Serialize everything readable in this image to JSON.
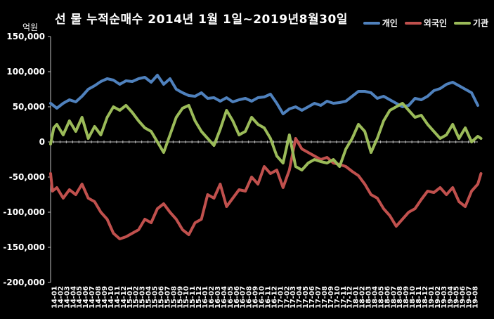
{
  "chart_data": {
    "type": "line",
    "title": "선 물 누적순매수 2014년 1월 1일~2019년8월30일",
    "unit_label": "억원",
    "ylim": [
      -200000,
      150000
    ],
    "y_ticks": [
      "150,000",
      "100,000",
      "50,000",
      "0",
      "-50,000",
      "-100,000",
      "-150,000",
      "-200,000"
    ],
    "x_ticks": [
      "14-01",
      "14-02",
      "14-03",
      "14-04",
      "14-05",
      "14-06",
      "14-07",
      "14-08",
      "14-09",
      "14-10",
      "14-11",
      "14-12",
      "15-01",
      "15-02",
      "15-03",
      "15-04",
      "15-05",
      "15-06",
      "15-07",
      "15-08",
      "15-09",
      "15-10",
      "15-11",
      "15-12",
      "16-01",
      "16-02",
      "16-03",
      "16-04",
      "16-05",
      "16-06",
      "16-07",
      "16-08",
      "16-09",
      "16-10",
      "16-11",
      "16-12",
      "17-01",
      "17-02",
      "17-03",
      "17-04",
      "17-05",
      "17-06",
      "17-07",
      "17-08",
      "17-09",
      "17-10",
      "17-11",
      "17-12",
      "18-01",
      "18-02",
      "18-03",
      "18-04",
      "18-05",
      "18-06",
      "18-07",
      "18-08",
      "18-09",
      "18-10",
      "18-11",
      "18-12",
      "19-01",
      "19-02",
      "19-03",
      "19-04",
      "19-05",
      "19-06",
      "19-07",
      "19-08"
    ],
    "x_range": [
      0,
      68
    ],
    "grid": false,
    "legend_position": "top-right",
    "series": [
      {
        "name": "개인",
        "color": "#4f81bd",
        "points": [
          [
            0,
            55000
          ],
          [
            1,
            48000
          ],
          [
            2,
            55000
          ],
          [
            3,
            60000
          ],
          [
            4,
            57000
          ],
          [
            5,
            65000
          ],
          [
            6,
            75000
          ],
          [
            7,
            80000
          ],
          [
            8,
            86000
          ],
          [
            9,
            90000
          ],
          [
            10,
            88000
          ],
          [
            11,
            82000
          ],
          [
            12,
            87000
          ],
          [
            13,
            86000
          ],
          [
            14,
            90000
          ],
          [
            15,
            92000
          ],
          [
            16,
            85000
          ],
          [
            17,
            95000
          ],
          [
            18,
            82000
          ],
          [
            19,
            90000
          ],
          [
            20,
            75000
          ],
          [
            21,
            70000
          ],
          [
            22,
            66000
          ],
          [
            23,
            65000
          ],
          [
            24,
            70000
          ],
          [
            25,
            62000
          ],
          [
            26,
            63000
          ],
          [
            27,
            58000
          ],
          [
            28,
            63000
          ],
          [
            29,
            57000
          ],
          [
            30,
            60000
          ],
          [
            31,
            62000
          ],
          [
            32,
            58000
          ],
          [
            33,
            63000
          ],
          [
            34,
            64000
          ],
          [
            35,
            68000
          ],
          [
            36,
            55000
          ],
          [
            37,
            40000
          ],
          [
            38,
            47000
          ],
          [
            39,
            50000
          ],
          [
            40,
            45000
          ],
          [
            41,
            50000
          ],
          [
            42,
            55000
          ],
          [
            43,
            52000
          ],
          [
            44,
            58000
          ],
          [
            45,
            55000
          ],
          [
            46,
            56000
          ],
          [
            47,
            58000
          ],
          [
            48,
            65000
          ],
          [
            49,
            72000
          ],
          [
            50,
            72000
          ],
          [
            51,
            70000
          ],
          [
            52,
            62000
          ],
          [
            53,
            65000
          ],
          [
            54,
            60000
          ],
          [
            55,
            55000
          ],
          [
            56,
            50000
          ],
          [
            57,
            52000
          ],
          [
            58,
            62000
          ],
          [
            59,
            60000
          ],
          [
            60,
            65000
          ],
          [
            61,
            73000
          ],
          [
            62,
            76000
          ],
          [
            63,
            82000
          ],
          [
            64,
            85000
          ],
          [
            65,
            80000
          ],
          [
            66,
            75000
          ],
          [
            67,
            70000
          ],
          [
            68,
            52000
          ]
        ]
      },
      {
        "name": "외국인",
        "color": "#c0504d",
        "points": [
          [
            0,
            -45000
          ],
          [
            0.3,
            -70000
          ],
          [
            1,
            -65000
          ],
          [
            2,
            -80000
          ],
          [
            3,
            -68000
          ],
          [
            4,
            -75000
          ],
          [
            5,
            -60000
          ],
          [
            6,
            -80000
          ],
          [
            7,
            -85000
          ],
          [
            8,
            -100000
          ],
          [
            9,
            -110000
          ],
          [
            10,
            -130000
          ],
          [
            11,
            -138000
          ],
          [
            12,
            -135000
          ],
          [
            13,
            -130000
          ],
          [
            14,
            -125000
          ],
          [
            15,
            -110000
          ],
          [
            16,
            -115000
          ],
          [
            17,
            -95000
          ],
          [
            18,
            -88000
          ],
          [
            19,
            -100000
          ],
          [
            20,
            -110000
          ],
          [
            21,
            -125000
          ],
          [
            22,
            -132000
          ],
          [
            23,
            -115000
          ],
          [
            24,
            -110000
          ],
          [
            25,
            -75000
          ],
          [
            26,
            -80000
          ],
          [
            27,
            -60000
          ],
          [
            28,
            -92000
          ],
          [
            29,
            -80000
          ],
          [
            30,
            -68000
          ],
          [
            31,
            -70000
          ],
          [
            32,
            -50000
          ],
          [
            33,
            -60000
          ],
          [
            34,
            -35000
          ],
          [
            35,
            -45000
          ],
          [
            36,
            -40000
          ],
          [
            37,
            -65000
          ],
          [
            38,
            -40000
          ],
          [
            39,
            5000
          ],
          [
            40,
            -10000
          ],
          [
            41,
            -15000
          ],
          [
            42,
            -20000
          ],
          [
            43,
            -25000
          ],
          [
            44,
            -22000
          ],
          [
            45,
            -30000
          ],
          [
            46,
            -32000
          ],
          [
            47,
            -35000
          ],
          [
            48,
            -42000
          ],
          [
            49,
            -48000
          ],
          [
            50,
            -60000
          ],
          [
            51,
            -75000
          ],
          [
            52,
            -80000
          ],
          [
            53,
            -95000
          ],
          [
            54,
            -105000
          ],
          [
            55,
            -120000
          ],
          [
            56,
            -110000
          ],
          [
            57,
            -100000
          ],
          [
            58,
            -95000
          ],
          [
            59,
            -82000
          ],
          [
            60,
            -70000
          ],
          [
            61,
            -72000
          ],
          [
            62,
            -65000
          ],
          [
            63,
            -75000
          ],
          [
            64,
            -65000
          ],
          [
            65,
            -85000
          ],
          [
            66,
            -92000
          ],
          [
            67,
            -70000
          ],
          [
            68,
            -60000
          ],
          [
            68.5,
            -45000
          ]
        ]
      },
      {
        "name": "기관",
        "color": "#9bbb59",
        "points": [
          [
            0,
            -3000
          ],
          [
            0.5,
            20000
          ],
          [
            1,
            25000
          ],
          [
            2,
            10000
          ],
          [
            3,
            30000
          ],
          [
            4,
            15000
          ],
          [
            5,
            35000
          ],
          [
            6,
            5000
          ],
          [
            7,
            22000
          ],
          [
            8,
            10000
          ],
          [
            9,
            35000
          ],
          [
            10,
            50000
          ],
          [
            11,
            45000
          ],
          [
            12,
            52000
          ],
          [
            13,
            42000
          ],
          [
            14,
            30000
          ],
          [
            15,
            20000
          ],
          [
            16,
            15000
          ],
          [
            17,
            0
          ],
          [
            18,
            -15000
          ],
          [
            19,
            10000
          ],
          [
            20,
            35000
          ],
          [
            21,
            48000
          ],
          [
            22,
            52000
          ],
          [
            23,
            30000
          ],
          [
            24,
            15000
          ],
          [
            25,
            5000
          ],
          [
            26,
            -5000
          ],
          [
            27,
            18000
          ],
          [
            28,
            45000
          ],
          [
            29,
            30000
          ],
          [
            30,
            10000
          ],
          [
            31,
            15000
          ],
          [
            32,
            35000
          ],
          [
            33,
            25000
          ],
          [
            34,
            20000
          ],
          [
            35,
            5000
          ],
          [
            36,
            -20000
          ],
          [
            37,
            -30000
          ],
          [
            38,
            10000
          ],
          [
            39,
            -35000
          ],
          [
            40,
            -40000
          ],
          [
            41,
            -30000
          ],
          [
            42,
            -25000
          ],
          [
            43,
            -28000
          ],
          [
            44,
            -30000
          ],
          [
            45,
            -25000
          ],
          [
            46,
            -35000
          ],
          [
            47,
            -10000
          ],
          [
            48,
            5000
          ],
          [
            49,
            25000
          ],
          [
            50,
            15000
          ],
          [
            51,
            -15000
          ],
          [
            52,
            5000
          ],
          [
            53,
            30000
          ],
          [
            54,
            45000
          ],
          [
            55,
            50000
          ],
          [
            56,
            55000
          ],
          [
            57,
            45000
          ],
          [
            58,
            35000
          ],
          [
            59,
            38000
          ],
          [
            60,
            25000
          ],
          [
            61,
            15000
          ],
          [
            62,
            5000
          ],
          [
            63,
            10000
          ],
          [
            64,
            25000
          ],
          [
            65,
            5000
          ],
          [
            66,
            20000
          ],
          [
            67,
            0
          ],
          [
            68,
            8000
          ],
          [
            68.5,
            5000
          ]
        ]
      }
    ]
  }
}
